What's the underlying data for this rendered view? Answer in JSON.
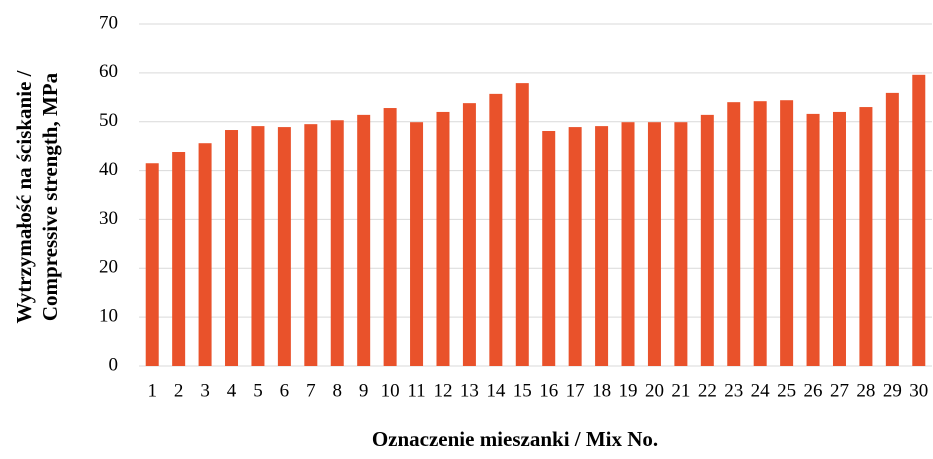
{
  "chart_data": {
    "type": "bar",
    "xlabel": "Oznaczenie mieszanki / Mix No.",
    "ylabel": [
      "Wytrzymałość  na ściskanie /",
      "Compressive strength, MPa"
    ],
    "categories": [
      "1",
      "2",
      "3",
      "4",
      "5",
      "6",
      "7",
      "8",
      "9",
      "10",
      "11",
      "12",
      "13",
      "14",
      "15",
      "16",
      "17",
      "18",
      "19",
      "20",
      "21",
      "22",
      "23",
      "24",
      "25",
      "26",
      "27",
      "28",
      "29",
      "30"
    ],
    "values": [
      41.5,
      43.8,
      45.6,
      48.3,
      49.1,
      48.9,
      49.5,
      50.3,
      51.4,
      52.8,
      49.9,
      52.0,
      53.8,
      55.7,
      57.9,
      48.1,
      48.9,
      49.1,
      49.9,
      49.9,
      49.9,
      51.4,
      54.0,
      54.2,
      54.4,
      51.6,
      52.0,
      53.0,
      55.9,
      59.6
    ],
    "color": "#e9522b",
    "ylim": [
      0,
      70
    ],
    "yticks": [
      0,
      10,
      20,
      30,
      40,
      50,
      60,
      70
    ],
    "grid": true
  }
}
